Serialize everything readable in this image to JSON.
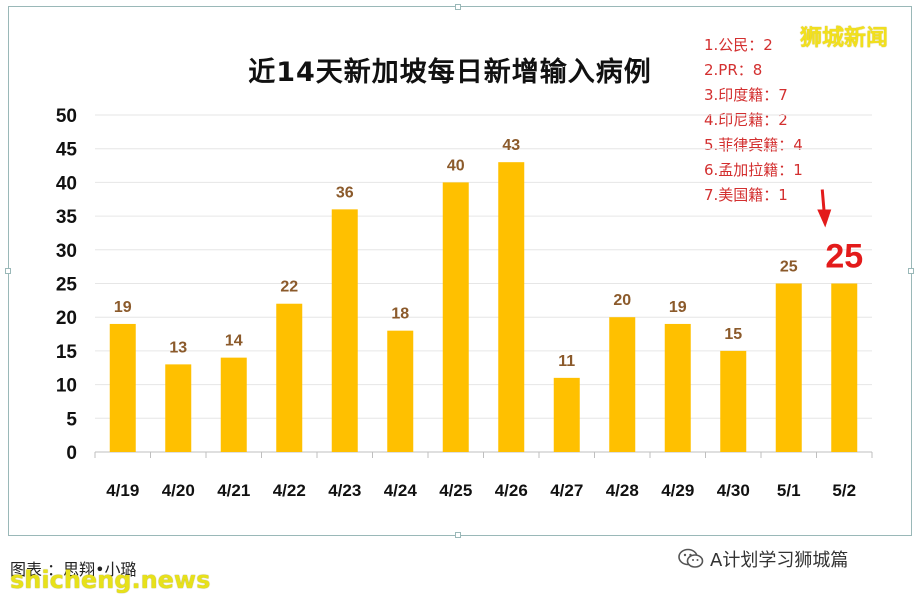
{
  "watermark_top": "狮城新闻",
  "breakdown": [
    "1.公民：2",
    "2.PR：8",
    "3.印度籍：7",
    "4.印尼籍：2",
    "5.菲律宾籍：4",
    "6.孟加拉籍：1",
    "7.美国籍：1"
  ],
  "footer": {
    "credit": "图表  ：思翔•小璐",
    "site": "shicheng.news",
    "account": "A计划学习狮城篇",
    "account_icon": "wechat-icon"
  },
  "colors": {
    "bar": "#FFC000",
    "value_label": "#8B5A2B",
    "highlight_label": "#E31B1B",
    "arrow": "#E31B1B"
  },
  "chart_data": {
    "type": "bar",
    "title": "近14天新加坡每日新增输入病例",
    "categories": [
      "4/19",
      "4/20",
      "4/21",
      "4/22",
      "4/23",
      "4/24",
      "4/25",
      "4/26",
      "4/27",
      "4/28",
      "4/29",
      "4/30",
      "5/1",
      "5/2"
    ],
    "values": [
      19,
      13,
      14,
      22,
      36,
      18,
      40,
      43,
      11,
      20,
      19,
      15,
      25,
      25
    ],
    "ylim": [
      0,
      50
    ],
    "yticks": [
      "0",
      "5",
      "10",
      "15",
      "20",
      "25",
      "30",
      "35",
      "40",
      "45",
      "50"
    ],
    "value_labels": [
      "19",
      "13",
      "14",
      "22",
      "36",
      "18",
      "40",
      "43",
      "11",
      "20",
      "19",
      "15",
      "25",
      "25"
    ],
    "grid": true,
    "highlight": {
      "category": "5/2",
      "label": "25"
    }
  }
}
